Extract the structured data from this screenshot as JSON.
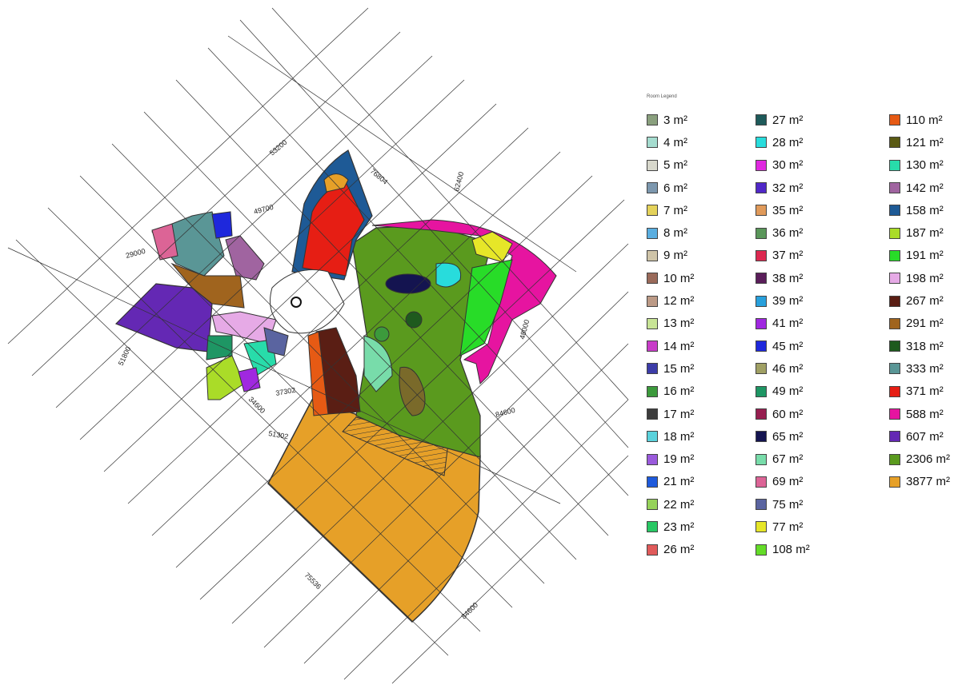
{
  "legend": {
    "title": "Room Legend",
    "columns": [
      [
        {
          "label": "3 m²",
          "color": "#8aa07e"
        },
        {
          "label": "4 m²",
          "color": "#a5dccf"
        },
        {
          "label": "5 m²",
          "color": "#d8d8cc"
        },
        {
          "label": "6 m²",
          "color": "#7c97ae"
        },
        {
          "label": "7 m²",
          "color": "#e4d25a"
        },
        {
          "label": "8 m²",
          "color": "#5aaee0"
        },
        {
          "label": "9 m²",
          "color": "#cfc4a8"
        },
        {
          "label": "10 m²",
          "color": "#9a6a5a"
        },
        {
          "label": "12 m²",
          "color": "#bc9a86"
        },
        {
          "label": "13 m²",
          "color": "#c8e496"
        },
        {
          "label": "14 m²",
          "color": "#c83cc8"
        },
        {
          "label": "15 m²",
          "color": "#3c3ca8"
        },
        {
          "label": "16 m²",
          "color": "#3c9a3c"
        },
        {
          "label": "17 m²",
          "color": "#3c3c3c"
        },
        {
          "label": "18 m²",
          "color": "#5ad2dc"
        },
        {
          "label": "19 m²",
          "color": "#9a5adc"
        },
        {
          "label": "21 m²",
          "color": "#1e5adc"
        },
        {
          "label": "22 m²",
          "color": "#96d25a"
        },
        {
          "label": "23 m²",
          "color": "#28c864"
        },
        {
          "label": "26 m²",
          "color": "#e05a5a"
        }
      ],
      [
        {
          "label": "27 m²",
          "color": "#1e5a5a"
        },
        {
          "label": "28 m²",
          "color": "#28dcdc"
        },
        {
          "label": "30 m²",
          "color": "#e028e0"
        },
        {
          "label": "32 m²",
          "color": "#5028c8"
        },
        {
          "label": "35 m²",
          "color": "#e09a5a"
        },
        {
          "label": "36 m²",
          "color": "#5a965a"
        },
        {
          "label": "37 m²",
          "color": "#dc2850"
        },
        {
          "label": "38 m²",
          "color": "#5a1e5a"
        },
        {
          "label": "39 m²",
          "color": "#28a0dc"
        },
        {
          "label": "41 m²",
          "color": "#a028e0"
        },
        {
          "label": "45 m²",
          "color": "#1e28dc"
        },
        {
          "label": "46 m²",
          "color": "#a0a064"
        },
        {
          "label": "49 m²",
          "color": "#1e9664"
        },
        {
          "label": "60 m²",
          "color": "#961e50"
        },
        {
          "label": "65 m²",
          "color": "#141450"
        },
        {
          "label": "67 m²",
          "color": "#78dcaa"
        },
        {
          "label": "69 m²",
          "color": "#dc6496"
        },
        {
          "label": "75 m²",
          "color": "#5a64a0"
        },
        {
          "label": "77 m²",
          "color": "#e6e628"
        },
        {
          "label": "108 m²",
          "color": "#64dc28"
        }
      ],
      [
        {
          "label": "110 m²",
          "color": "#e65a14"
        },
        {
          "label": "121 m²",
          "color": "#5a5a14"
        },
        {
          "label": "130 m²",
          "color": "#28dcaa"
        },
        {
          "label": "142 m²",
          "color": "#a064a0"
        },
        {
          "label": "158 m²",
          "color": "#1e5a96"
        },
        {
          "label": "187 m²",
          "color": "#aadc28"
        },
        {
          "label": "191 m²",
          "color": "#28dc28"
        },
        {
          "label": "198 m²",
          "color": "#e6aae6"
        },
        {
          "label": "267 m²",
          "color": "#5a1e14"
        },
        {
          "label": "291 m²",
          "color": "#a0641e"
        },
        {
          "label": "318 m²",
          "color": "#1e5a1e"
        },
        {
          "label": "333 m²",
          "color": "#5a9696"
        },
        {
          "label": "371 m²",
          "color": "#e61e14"
        },
        {
          "label": "588 m²",
          "color": "#e614a0"
        },
        {
          "label": "607 m²",
          "color": "#6428b4"
        },
        {
          "label": "2306 m²",
          "color": "#5a9a1e"
        },
        {
          "label": "3877 m²",
          "color": "#e6a028"
        }
      ]
    ]
  },
  "plan": {
    "dimensions": [
      "53200",
      "49700",
      "29000",
      "76804",
      "62400",
      "48000",
      "84600",
      "37302",
      "51302",
      "34600",
      "51800",
      "75536",
      "84600"
    ]
  }
}
